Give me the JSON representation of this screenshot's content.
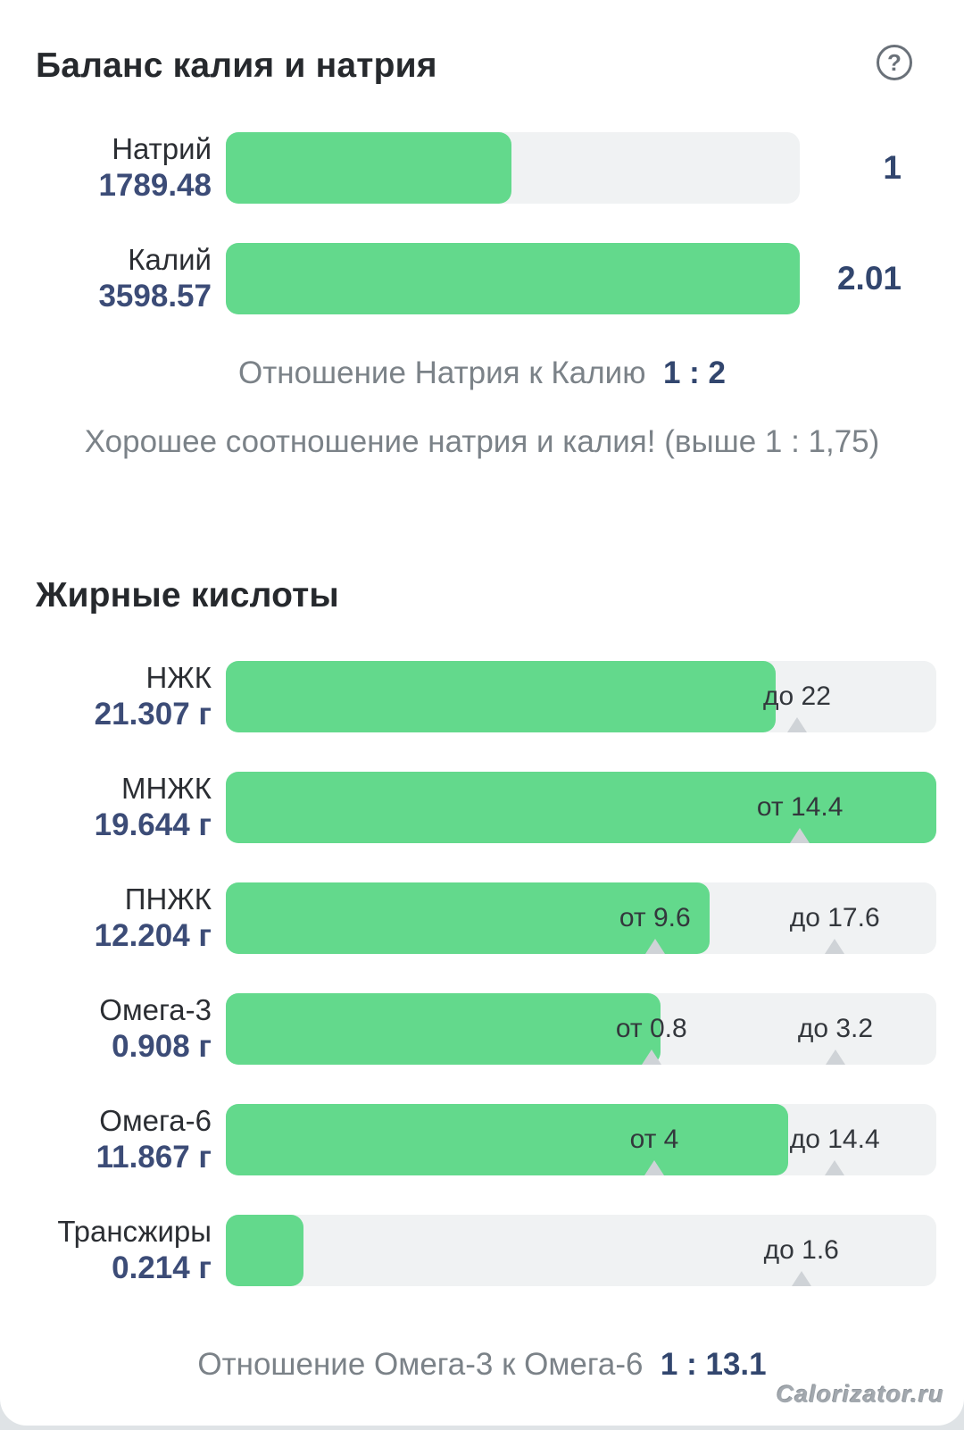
{
  "chart_data": [
    {
      "type": "bar",
      "title": "Баланс калия и натрия",
      "categories": [
        "Натрий",
        "Калий"
      ],
      "values": [
        1789.48,
        3598.57
      ],
      "ratio_values": [
        1,
        2.01
      ],
      "ratio_label": "Отношение Натрия к Калию",
      "ratio_value": "1 : 2",
      "note": "Хорошее соотношение натрия и калия! (выше 1 : 1,75)"
    },
    {
      "type": "bar",
      "title": "Жирные кислоты",
      "categories": [
        "НЖК",
        "МНЖК",
        "ПНЖК",
        "Омега-3",
        "Омега-6",
        "Трансжиры"
      ],
      "values_g": [
        21.307,
        19.644,
        12.204,
        0.908,
        11.867,
        0.214
      ],
      "limits": [
        {
          "max": 22
        },
        {
          "min": 14.4
        },
        {
          "min": 9.6,
          "max": 17.6
        },
        {
          "min": 0.8,
          "max": 3.2
        },
        {
          "min": 4,
          "max": 14.4
        },
        {
          "max": 1.6
        }
      ],
      "ratio_label": "Отношение Омега-3 к Омега-6",
      "ratio_value": "1 : 13.1"
    }
  ],
  "sodium_potassium": {
    "title": "Баланс калия и натрия",
    "help_label": "?",
    "rows": [
      {
        "label": "Натрий",
        "value": "1789.48",
        "ratio": "1",
        "fill_pct": 49.8
      },
      {
        "label": "Калий",
        "value": "3598.57",
        "ratio": "2.01",
        "fill_pct": 100
      }
    ],
    "ratio_label": "Отношение Натрия к Калию",
    "ratio_value": "1 : 2",
    "note": "Хорошее соотношение натрия и калия! (выше 1 : 1,75)"
  },
  "fatty_acids": {
    "title": "Жирные кислоты",
    "rows": [
      {
        "label": "НЖК",
        "value": "21.307 г",
        "fill_pct": 77.4,
        "marker1": {
          "text": "до 22",
          "pct": 80.4
        }
      },
      {
        "label": "МНЖК",
        "value": "19.644 г",
        "fill_pct": 100,
        "marker1": {
          "text": "от 14.4",
          "pct": 80.8
        }
      },
      {
        "label": "ПНЖК",
        "value": "12.204 г",
        "fill_pct": 68.1,
        "marker1": {
          "text": "от 9.6",
          "pct": 60.4
        },
        "marker2": {
          "text": "до 17.6",
          "pct": 85.7
        }
      },
      {
        "label": "Омега-3",
        "value": "0.908 г",
        "fill_pct": 61.2,
        "marker1": {
          "text": "от 0.8",
          "pct": 59.9
        },
        "marker2": {
          "text": "до 3.2",
          "pct": 85.8
        }
      },
      {
        "label": "Омега-6",
        "value": "11.867 г",
        "fill_pct": 79.1,
        "marker1": {
          "text": "от 4",
          "pct": 60.3
        },
        "marker2": {
          "text": "до 14.4",
          "pct": 85.7
        }
      },
      {
        "label": "Трансжиры",
        "value": "0.214 г",
        "fill_pct": 10.9,
        "marker1": {
          "text": "до 1.6",
          "pct": 81
        }
      }
    ],
    "ratio_label": "Отношение Омега-3 к Омега-6",
    "ratio_value": "1 : 13.1"
  },
  "watermark": "Calorizator.ru",
  "colors": {
    "bar_fill": "#63d98c",
    "bar_track": "#f0f2f3",
    "value_text": "#3c4c77",
    "accent_text": "#32466e",
    "muted_text": "#7b8288"
  }
}
